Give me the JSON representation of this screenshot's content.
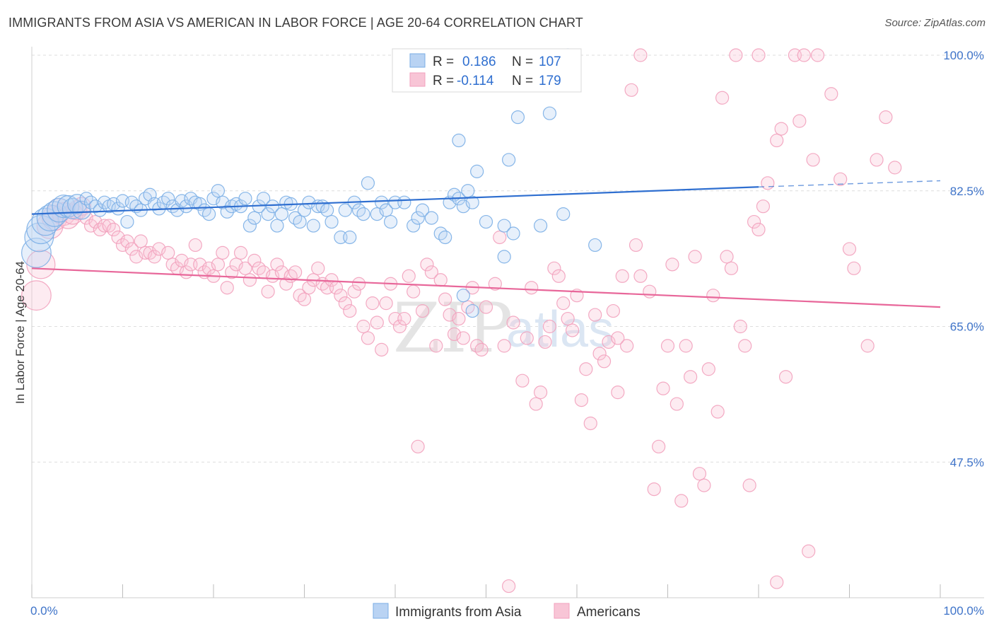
{
  "header": {
    "title": "IMMIGRANTS FROM ASIA VS AMERICAN IN LABOR FORCE | AGE 20-64 CORRELATION CHART",
    "source": "Source: ZipAtlas.com"
  },
  "legend": {
    "r_label": "R =",
    "n_label": "N =",
    "rows": [
      {
        "r": "0.186",
        "n": "107"
      },
      {
        "r": "-0.114",
        "n": "179"
      }
    ]
  },
  "watermark": {
    "part1": "ZIP",
    "part2": "atlas"
  },
  "chart_data": {
    "type": "scatter",
    "ylabel": "In Labor Force | Age 20-64",
    "xlim": [
      0,
      100
    ],
    "ylim": [
      30,
      100
    ],
    "x_tick_labels": [
      "0.0%",
      "100.0%"
    ],
    "y_ticks": [
      {
        "value": 47.5,
        "label": "47.5%"
      },
      {
        "value": 65.0,
        "label": "65.0%"
      },
      {
        "value": 82.5,
        "label": "82.5%"
      },
      {
        "value": 100.0,
        "label": "100.0%"
      }
    ],
    "grid": true,
    "legend_position": "top-center",
    "series": [
      {
        "name": "Immigrants from Asia",
        "color": "#7aaee6",
        "trend": {
          "x0": 0,
          "y0": 79.5,
          "x1": 80,
          "y1": 83.0,
          "x_dash_end": 100,
          "y_dash_end": 83.8,
          "color": "#2f6fd0"
        },
        "points": [
          [
            0.5,
            74.5
          ],
          [
            0.8,
            76.5
          ],
          [
            1.0,
            77.5
          ],
          [
            1.5,
            78.5
          ],
          [
            2.0,
            79.0
          ],
          [
            2.5,
            79.5
          ],
          [
            3.0,
            80.0
          ],
          [
            3.5,
            80.5
          ],
          [
            4.0,
            80.5
          ],
          [
            4.5,
            80.2
          ],
          [
            5.0,
            80.8
          ],
          [
            5.5,
            80.0
          ],
          [
            6.0,
            81.5
          ],
          [
            6.5,
            81.0
          ],
          [
            7.0,
            80.5
          ],
          [
            7.5,
            80.0
          ],
          [
            8.0,
            81.0
          ],
          [
            8.5,
            80.5
          ],
          [
            9.0,
            80.8
          ],
          [
            9.5,
            80.2
          ],
          [
            10.0,
            81.2
          ],
          [
            10.5,
            78.5
          ],
          [
            11.0,
            81.0
          ],
          [
            11.5,
            80.5
          ],
          [
            12.0,
            80.0
          ],
          [
            12.5,
            81.5
          ],
          [
            13.0,
            82.0
          ],
          [
            13.5,
            80.8
          ],
          [
            14.0,
            80.2
          ],
          [
            14.5,
            81.0
          ],
          [
            15.0,
            81.5
          ],
          [
            15.5,
            80.5
          ],
          [
            16.0,
            80.0
          ],
          [
            16.5,
            81.2
          ],
          [
            17.0,
            80.5
          ],
          [
            17.5,
            81.5
          ],
          [
            18.0,
            81.0
          ],
          [
            18.5,
            80.8
          ],
          [
            19.0,
            80.0
          ],
          [
            19.5,
            79.5
          ],
          [
            20.0,
            81.5
          ],
          [
            20.5,
            82.5
          ],
          [
            21.0,
            81.0
          ],
          [
            21.5,
            79.8
          ],
          [
            22.0,
            80.5
          ],
          [
            22.5,
            80.8
          ],
          [
            23.0,
            80.5
          ],
          [
            23.5,
            81.5
          ],
          [
            24.0,
            78.0
          ],
          [
            24.5,
            79.0
          ],
          [
            25.0,
            80.5
          ],
          [
            25.5,
            81.5
          ],
          [
            26.0,
            79.5
          ],
          [
            26.5,
            80.5
          ],
          [
            27.0,
            78.0
          ],
          [
            27.5,
            79.5
          ],
          [
            28.0,
            81.0
          ],
          [
            28.5,
            80.8
          ],
          [
            29.0,
            79.0
          ],
          [
            29.5,
            78.5
          ],
          [
            30.0,
            80.0
          ],
          [
            30.5,
            81.0
          ],
          [
            31.0,
            78.0
          ],
          [
            31.5,
            80.5
          ],
          [
            32.0,
            80.5
          ],
          [
            32.5,
            80.0
          ],
          [
            33.0,
            78.5
          ],
          [
            34.0,
            76.5
          ],
          [
            34.5,
            80.0
          ],
          [
            35.0,
            76.5
          ],
          [
            35.5,
            81.0
          ],
          [
            36.0,
            80.0
          ],
          [
            36.5,
            79.5
          ],
          [
            37.0,
            83.5
          ],
          [
            38.0,
            79.5
          ],
          [
            38.5,
            81.0
          ],
          [
            39.0,
            80.0
          ],
          [
            39.5,
            78.5
          ],
          [
            40.0,
            81.0
          ],
          [
            41.0,
            81.0
          ],
          [
            42.0,
            78.0
          ],
          [
            42.5,
            79.0
          ],
          [
            43.0,
            80.0
          ],
          [
            44.0,
            79.0
          ],
          [
            45.0,
            77.0
          ],
          [
            45.5,
            76.5
          ],
          [
            46.0,
            81.0
          ],
          [
            46.5,
            82.0
          ],
          [
            47.0,
            81.5
          ],
          [
            47.5,
            80.5
          ],
          [
            48.0,
            82.5
          ],
          [
            48.5,
            81.0
          ],
          [
            47.0,
            89.0
          ],
          [
            49.0,
            85.0
          ],
          [
            50.0,
            78.5
          ],
          [
            52.0,
            78.0
          ],
          [
            52.5,
            86.5
          ],
          [
            52.0,
            74.0
          ],
          [
            53.0,
            77.0
          ],
          [
            53.5,
            92.0
          ],
          [
            56.0,
            78.0
          ],
          [
            57.0,
            92.5
          ],
          [
            59.0,
            100.0
          ],
          [
            47.5,
            69.0
          ],
          [
            62.0,
            75.5
          ],
          [
            58.5,
            79.5
          ],
          [
            48.5,
            67.0
          ]
        ],
        "sizes_note": "cluster near origin drawn with larger bubbles"
      },
      {
        "name": "Americans",
        "color": "#f2a1bd",
        "trend": {
          "x0": 0,
          "y0": 72.5,
          "x1": 100,
          "y1": 67.5,
          "color": "#e8679a"
        },
        "points": [
          [
            0.5,
            69.0
          ],
          [
            1.0,
            73.0
          ],
          [
            2.0,
            78.0
          ],
          [
            2.5,
            79.0
          ],
          [
            3.0,
            80.0
          ],
          [
            3.5,
            79.5
          ],
          [
            4.0,
            79.0
          ],
          [
            4.5,
            79.5
          ],
          [
            5.0,
            80.0
          ],
          [
            5.5,
            80.5
          ],
          [
            6.0,
            79.0
          ],
          [
            6.5,
            78.0
          ],
          [
            7.0,
            78.5
          ],
          [
            7.5,
            77.5
          ],
          [
            8.0,
            78.0
          ],
          [
            8.5,
            78.0
          ],
          [
            9.0,
            77.5
          ],
          [
            9.5,
            76.5
          ],
          [
            10.0,
            75.5
          ],
          [
            10.5,
            76.0
          ],
          [
            11.0,
            75.0
          ],
          [
            11.5,
            74.0
          ],
          [
            12.0,
            76.0
          ],
          [
            12.5,
            74.5
          ],
          [
            13.0,
            74.5
          ],
          [
            13.5,
            74.0
          ],
          [
            14.0,
            75.0
          ],
          [
            15.0,
            74.5
          ],
          [
            15.5,
            73.0
          ],
          [
            16.0,
            72.5
          ],
          [
            16.5,
            73.5
          ],
          [
            17.0,
            72.0
          ],
          [
            17.5,
            73.0
          ],
          [
            18.0,
            75.5
          ],
          [
            18.5,
            73.0
          ],
          [
            19.0,
            72.0
          ],
          [
            19.5,
            72.5
          ],
          [
            20.0,
            71.5
          ],
          [
            20.5,
            73.0
          ],
          [
            21.0,
            74.5
          ],
          [
            21.5,
            70.0
          ],
          [
            22.0,
            72.0
          ],
          [
            22.5,
            73.0
          ],
          [
            23.0,
            74.5
          ],
          [
            23.5,
            72.5
          ],
          [
            24.0,
            71.0
          ],
          [
            24.5,
            73.5
          ],
          [
            25.0,
            72.5
          ],
          [
            25.5,
            72.0
          ],
          [
            26.0,
            69.5
          ],
          [
            26.5,
            71.5
          ],
          [
            27.0,
            73.0
          ],
          [
            27.5,
            72.0
          ],
          [
            28.0,
            70.5
          ],
          [
            28.5,
            71.5
          ],
          [
            29.0,
            72.0
          ],
          [
            29.5,
            69.0
          ],
          [
            30.0,
            68.5
          ],
          [
            30.5,
            70.0
          ],
          [
            31.0,
            71.0
          ],
          [
            31.5,
            72.5
          ],
          [
            32.0,
            70.5
          ],
          [
            32.5,
            70.0
          ],
          [
            33.0,
            71.0
          ],
          [
            33.5,
            70.0
          ],
          [
            34.0,
            69.0
          ],
          [
            34.5,
            68.0
          ],
          [
            35.0,
            67.0
          ],
          [
            35.5,
            69.5
          ],
          [
            36.0,
            70.5
          ],
          [
            36.5,
            65.0
          ],
          [
            37.0,
            63.5
          ],
          [
            37.5,
            68.0
          ],
          [
            38.0,
            65.5
          ],
          [
            38.5,
            62.0
          ],
          [
            39.0,
            68.0
          ],
          [
            39.5,
            70.5
          ],
          [
            40.0,
            66.0
          ],
          [
            40.5,
            65.0
          ],
          [
            41.0,
            66.0
          ],
          [
            41.5,
            71.5
          ],
          [
            42.0,
            69.5
          ],
          [
            42.5,
            49.5
          ],
          [
            43.0,
            67.0
          ],
          [
            43.5,
            73.0
          ],
          [
            44.0,
            72.0
          ],
          [
            44.5,
            62.5
          ],
          [
            45.0,
            71.0
          ],
          [
            45.5,
            68.5
          ],
          [
            46.0,
            66.5
          ],
          [
            46.5,
            64.0
          ],
          [
            47.0,
            66.0
          ],
          [
            47.5,
            63.5
          ],
          [
            48.0,
            67.5
          ],
          [
            48.5,
            70.0
          ],
          [
            49.0,
            62.5
          ],
          [
            49.5,
            62.0
          ],
          [
            50.0,
            67.5
          ],
          [
            51.0,
            70.5
          ],
          [
            51.5,
            76.5
          ],
          [
            52.0,
            62.5
          ],
          [
            53.0,
            65.5
          ],
          [
            54.0,
            58.0
          ],
          [
            54.5,
            63.5
          ],
          [
            55.0,
            70.0
          ],
          [
            55.5,
            55.0
          ],
          [
            56.0,
            56.5
          ],
          [
            56.5,
            63.0
          ],
          [
            57.0,
            65.0
          ],
          [
            57.5,
            72.5
          ],
          [
            58.0,
            71.5
          ],
          [
            58.5,
            68.0
          ],
          [
            59.0,
            66.0
          ],
          [
            59.5,
            64.5
          ],
          [
            60.0,
            69.0
          ],
          [
            60.5,
            55.5
          ],
          [
            61.0,
            59.5
          ],
          [
            61.5,
            52.5
          ],
          [
            62.0,
            66.5
          ],
          [
            62.5,
            61.5
          ],
          [
            63.0,
            60.5
          ],
          [
            63.5,
            63.0
          ],
          [
            64.0,
            67.0
          ],
          [
            64.5,
            56.5
          ],
          [
            65.0,
            71.5
          ],
          [
            65.5,
            62.5
          ],
          [
            66.0,
            95.5
          ],
          [
            66.5,
            75.5
          ],
          [
            67.0,
            71.5
          ],
          [
            68.0,
            69.5
          ],
          [
            68.5,
            44.0
          ],
          [
            69.0,
            49.5
          ],
          [
            69.5,
            57.0
          ],
          [
            70.0,
            62.5
          ],
          [
            70.5,
            73.0
          ],
          [
            71.0,
            55.0
          ],
          [
            71.5,
            42.5
          ],
          [
            72.0,
            62.5
          ],
          [
            72.5,
            58.5
          ],
          [
            73.0,
            74.0
          ],
          [
            73.5,
            46.0
          ],
          [
            74.0,
            44.5
          ],
          [
            74.5,
            59.5
          ],
          [
            75.0,
            69.0
          ],
          [
            75.5,
            54.0
          ],
          [
            76.0,
            94.5
          ],
          [
            76.5,
            74.0
          ],
          [
            77.0,
            72.5
          ],
          [
            77.5,
            100.0
          ],
          [
            78.0,
            65.0
          ],
          [
            78.5,
            62.5
          ],
          [
            79.0,
            44.5
          ],
          [
            79.5,
            78.5
          ],
          [
            80.0,
            77.5
          ],
          [
            80.5,
            80.5
          ],
          [
            81.0,
            83.5
          ],
          [
            82.0,
            89.0
          ],
          [
            82.5,
            90.5
          ],
          [
            83.0,
            58.5
          ],
          [
            84.0,
            100.0
          ],
          [
            84.5,
            91.5
          ],
          [
            85.0,
            100.0
          ],
          [
            85.5,
            36.0
          ],
          [
            86.0,
            86.5
          ],
          [
            86.5,
            100.0
          ],
          [
            88.0,
            95.0
          ],
          [
            89.0,
            84.0
          ],
          [
            90.0,
            75.0
          ],
          [
            90.5,
            72.5
          ],
          [
            92.0,
            62.5
          ],
          [
            93.0,
            86.5
          ],
          [
            94.0,
            92.0
          ],
          [
            95.0,
            85.5
          ],
          [
            82.0,
            32.0
          ],
          [
            52.5,
            31.5
          ],
          [
            67.0,
            100.0
          ],
          [
            80.0,
            100.0
          ],
          [
            64.5,
            63.5
          ]
        ]
      }
    ]
  },
  "bottom_legend": [
    "Immigrants from Asia",
    "Americans"
  ]
}
